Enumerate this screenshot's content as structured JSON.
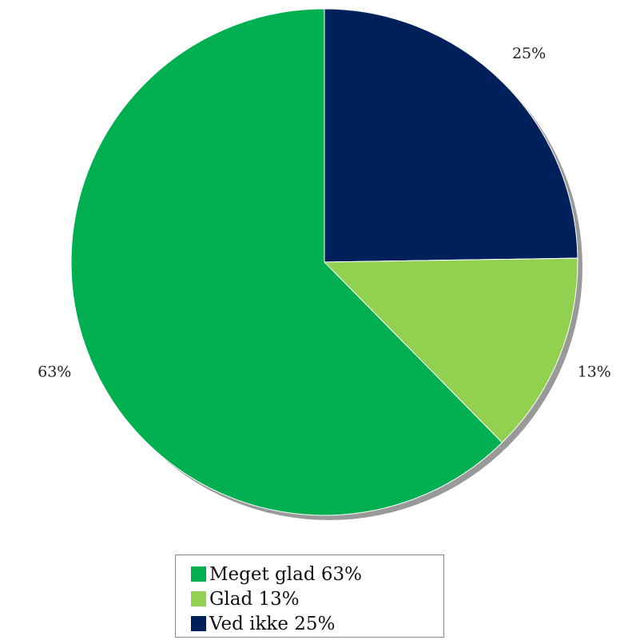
{
  "chart_data": {
    "type": "pie",
    "slices": [
      {
        "label": "Ved ikke 25%",
        "value": 25,
        "pct_label": "25%",
        "color": "#00205b"
      },
      {
        "label": "Glad 13%",
        "value": 13,
        "pct_label": "13%",
        "color": "#92d050"
      },
      {
        "label": "Meget glad 63%",
        "value": 63,
        "pct_label": "63%",
        "color": "#00b050"
      }
    ],
    "legend_order": [
      2,
      1,
      0
    ],
    "legend_position": "bottom",
    "start_angle": "12 o'clock",
    "direction": "clockwise",
    "shadow_color": "#999999"
  }
}
